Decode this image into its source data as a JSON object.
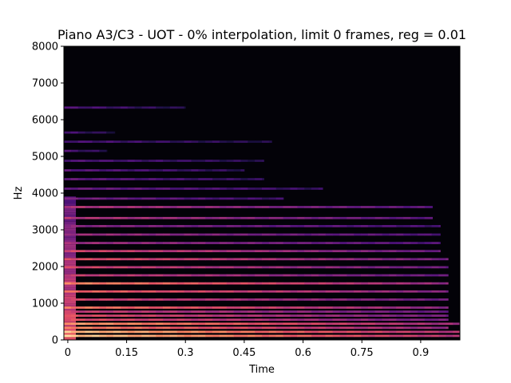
{
  "chart_data": {
    "type": "heatmap",
    "title": "Piano A3/C3 - UOT - 0% interpolation, limit 0 frames, reg = 0.01",
    "xlabel": "Time",
    "ylabel": "Hz",
    "x_ticks": [
      "0",
      "0.15",
      "0.3",
      "0.45",
      "0.6",
      "0.75",
      "0.9"
    ],
    "x_tick_values": [
      0,
      0.15,
      0.3,
      0.45,
      0.6,
      0.75,
      0.9
    ],
    "y_ticks": [
      "0",
      "1000",
      "2000",
      "3000",
      "4000",
      "5000",
      "6000",
      "7000",
      "8000"
    ],
    "y_tick_values": [
      0,
      1000,
      2000,
      3000,
      4000,
      5000,
      6000,
      7000,
      8000
    ],
    "xlim": [
      -0.01,
      1.0
    ],
    "ylim": [
      0,
      8000
    ],
    "grid": false,
    "colormap": "magma",
    "background_color": "#030208",
    "partials": [
      {
        "freq": 110,
        "end": 1.0,
        "intensity": 0.9
      },
      {
        "freq": 220,
        "end": 1.0,
        "intensity": 0.88
      },
      {
        "freq": 330,
        "end": 0.97,
        "intensity": 0.75
      },
      {
        "freq": 440,
        "end": 1.0,
        "intensity": 0.8
      },
      {
        "freq": 550,
        "end": 0.97,
        "intensity": 0.62
      },
      {
        "freq": 660,
        "end": 0.97,
        "intensity": 0.62
      },
      {
        "freq": 770,
        "end": 0.97,
        "intensity": 0.55
      },
      {
        "freq": 880,
        "end": 0.97,
        "intensity": 0.72
      },
      {
        "freq": 1100,
        "end": 0.97,
        "intensity": 0.58
      },
      {
        "freq": 1320,
        "end": 0.97,
        "intensity": 0.68
      },
      {
        "freq": 1540,
        "end": 0.97,
        "intensity": 0.75
      },
      {
        "freq": 1760,
        "end": 0.97,
        "intensity": 0.55
      },
      {
        "freq": 1980,
        "end": 0.97,
        "intensity": 0.58
      },
      {
        "freq": 2200,
        "end": 0.97,
        "intensity": 0.62
      },
      {
        "freq": 2420,
        "end": 0.95,
        "intensity": 0.58
      },
      {
        "freq": 2640,
        "end": 0.95,
        "intensity": 0.45
      },
      {
        "freq": 2870,
        "end": 0.95,
        "intensity": 0.45
      },
      {
        "freq": 3100,
        "end": 0.95,
        "intensity": 0.4
      },
      {
        "freq": 3320,
        "end": 0.93,
        "intensity": 0.5
      },
      {
        "freq": 3620,
        "end": 0.93,
        "intensity": 0.5
      },
      {
        "freq": 3850,
        "end": 0.55,
        "intensity": 0.35
      },
      {
        "freq": 4120,
        "end": 0.65,
        "intensity": 0.32
      },
      {
        "freq": 4380,
        "end": 0.5,
        "intensity": 0.3
      },
      {
        "freq": 4620,
        "end": 0.45,
        "intensity": 0.28
      },
      {
        "freq": 4880,
        "end": 0.5,
        "intensity": 0.26
      },
      {
        "freq": 5150,
        "end": 0.1,
        "intensity": 0.24
      },
      {
        "freq": 5400,
        "end": 0.52,
        "intensity": 0.24
      },
      {
        "freq": 5650,
        "end": 0.12,
        "intensity": 0.22
      },
      {
        "freq": 6330,
        "end": 0.3,
        "intensity": 0.25
      }
    ]
  }
}
